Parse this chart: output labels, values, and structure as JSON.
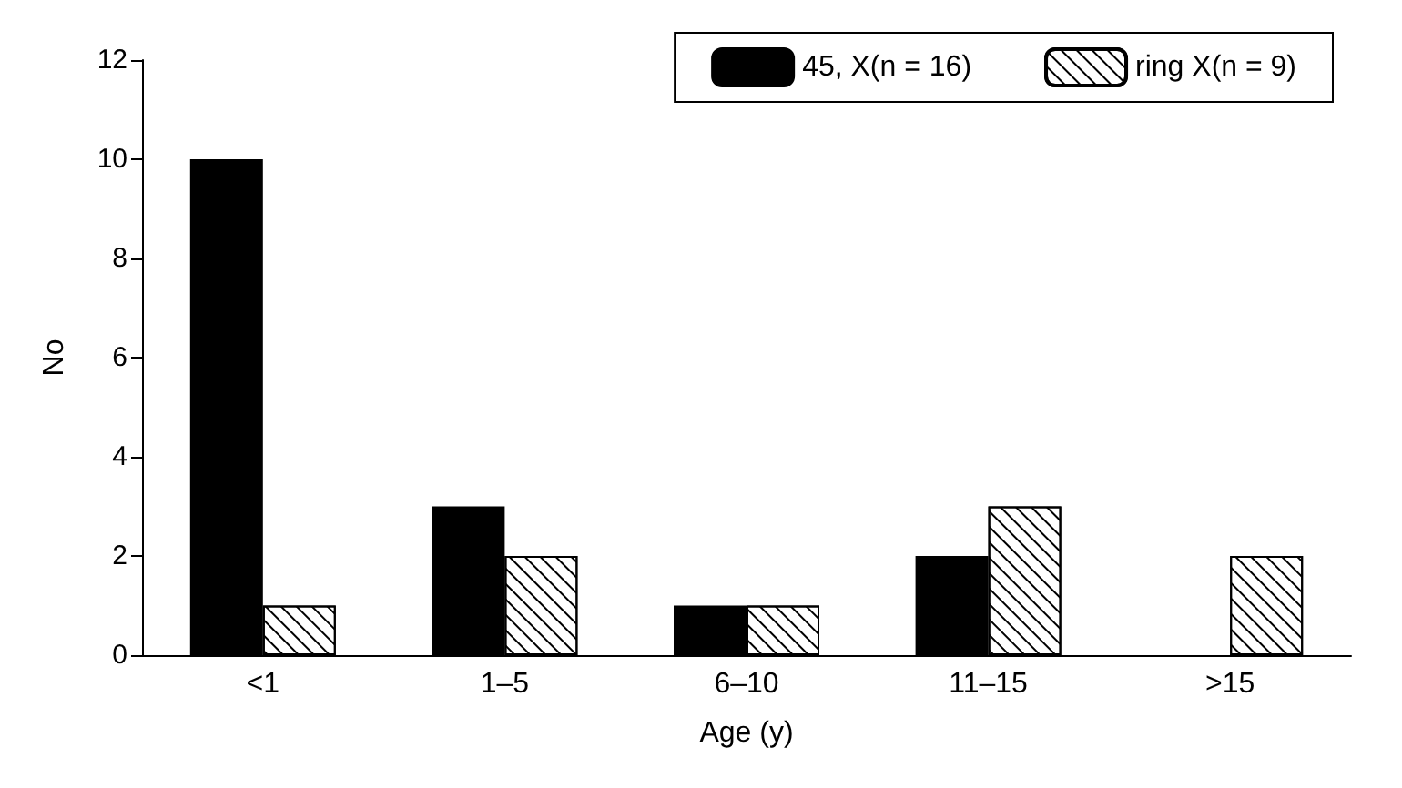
{
  "chart_data": {
    "type": "bar",
    "xlabel": "Age (y)",
    "ylabel": "No",
    "categories": [
      "<1",
      "1–5",
      "6–10",
      "11–15",
      ">15"
    ],
    "series": [
      {
        "name": "45, X(n = 16)",
        "color": "#000000",
        "values": [
          10,
          3,
          1,
          2,
          null
        ]
      },
      {
        "name": "ring X(n = 9)",
        "color": "#ffffff",
        "values": [
          1,
          2,
          1,
          3,
          2
        ]
      }
    ],
    "ylim": [
      0,
      12
    ],
    "yticks": [
      0,
      2,
      4,
      6,
      8,
      10,
      12
    ],
    "grid": false,
    "legend": "top right"
  }
}
